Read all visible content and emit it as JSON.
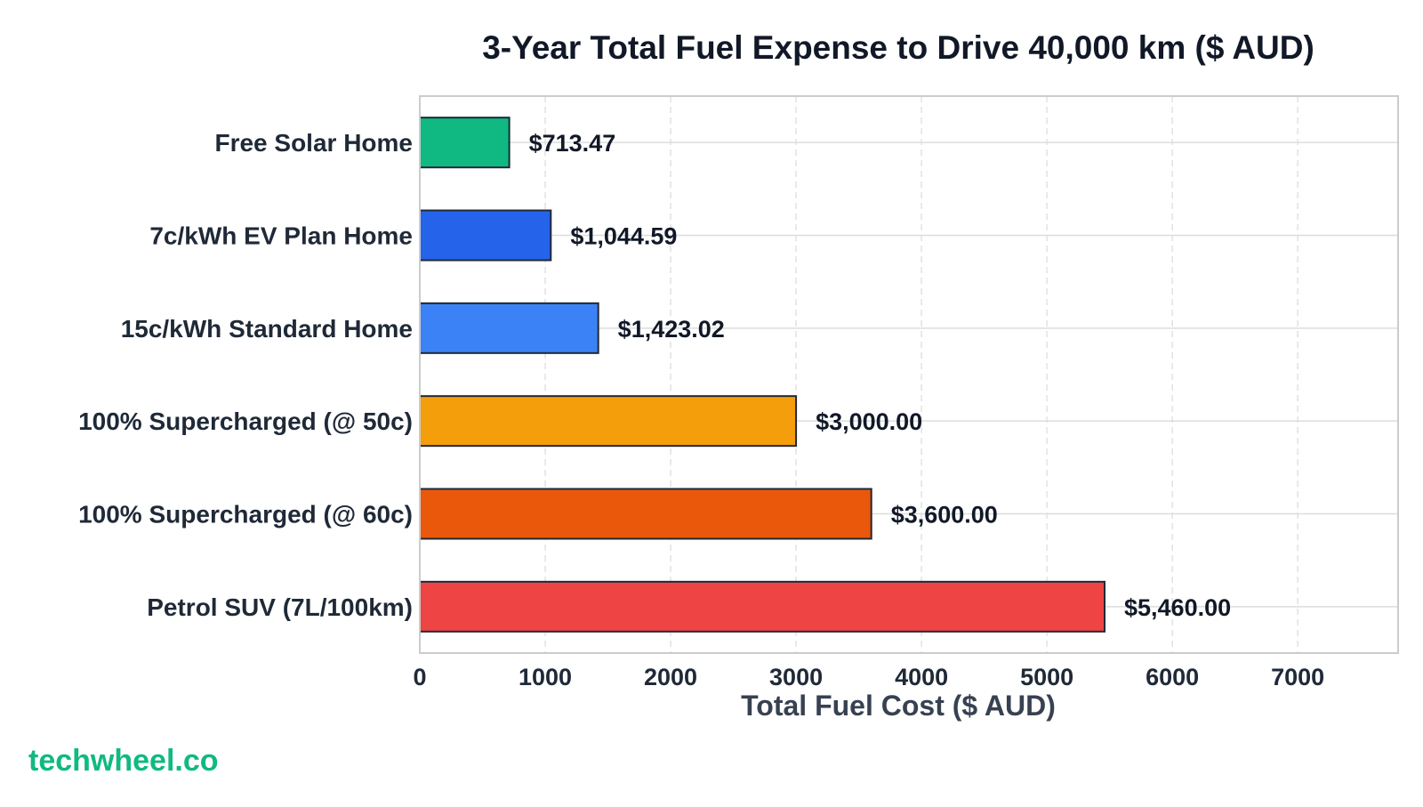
{
  "chart_data": {
    "type": "bar",
    "orientation": "horizontal",
    "title": "3-Year Total Fuel Expense to Drive 40,000 km ($ AUD)",
    "xlabel": "Total Fuel Cost ($ AUD)",
    "ylabel": "",
    "xlim": [
      0,
      7800
    ],
    "xticks": [
      0,
      1000,
      2000,
      3000,
      4000,
      5000,
      6000,
      7000
    ],
    "grid": true,
    "categories": [
      "Free Solar Home",
      "7c/kWh EV Plan Home",
      "15c/kWh Standard Home",
      "100% Supercharged (@ 50c)",
      "100% Supercharged (@ 60c)",
      "Petrol SUV (7L/100km)"
    ],
    "values": [
      713.47,
      1044.59,
      1423.02,
      3000.0,
      3600.0,
      5460.0
    ],
    "value_labels": [
      "$713.47",
      "$1,044.59",
      "$1,423.02",
      "$3,000.00",
      "$3,600.00",
      "$5,460.00"
    ],
    "colors": [
      "#10b981",
      "#2563eb",
      "#3b82f6",
      "#f59e0b",
      "#ea580c",
      "#ef4444"
    ]
  },
  "watermark": "techwheel.co"
}
